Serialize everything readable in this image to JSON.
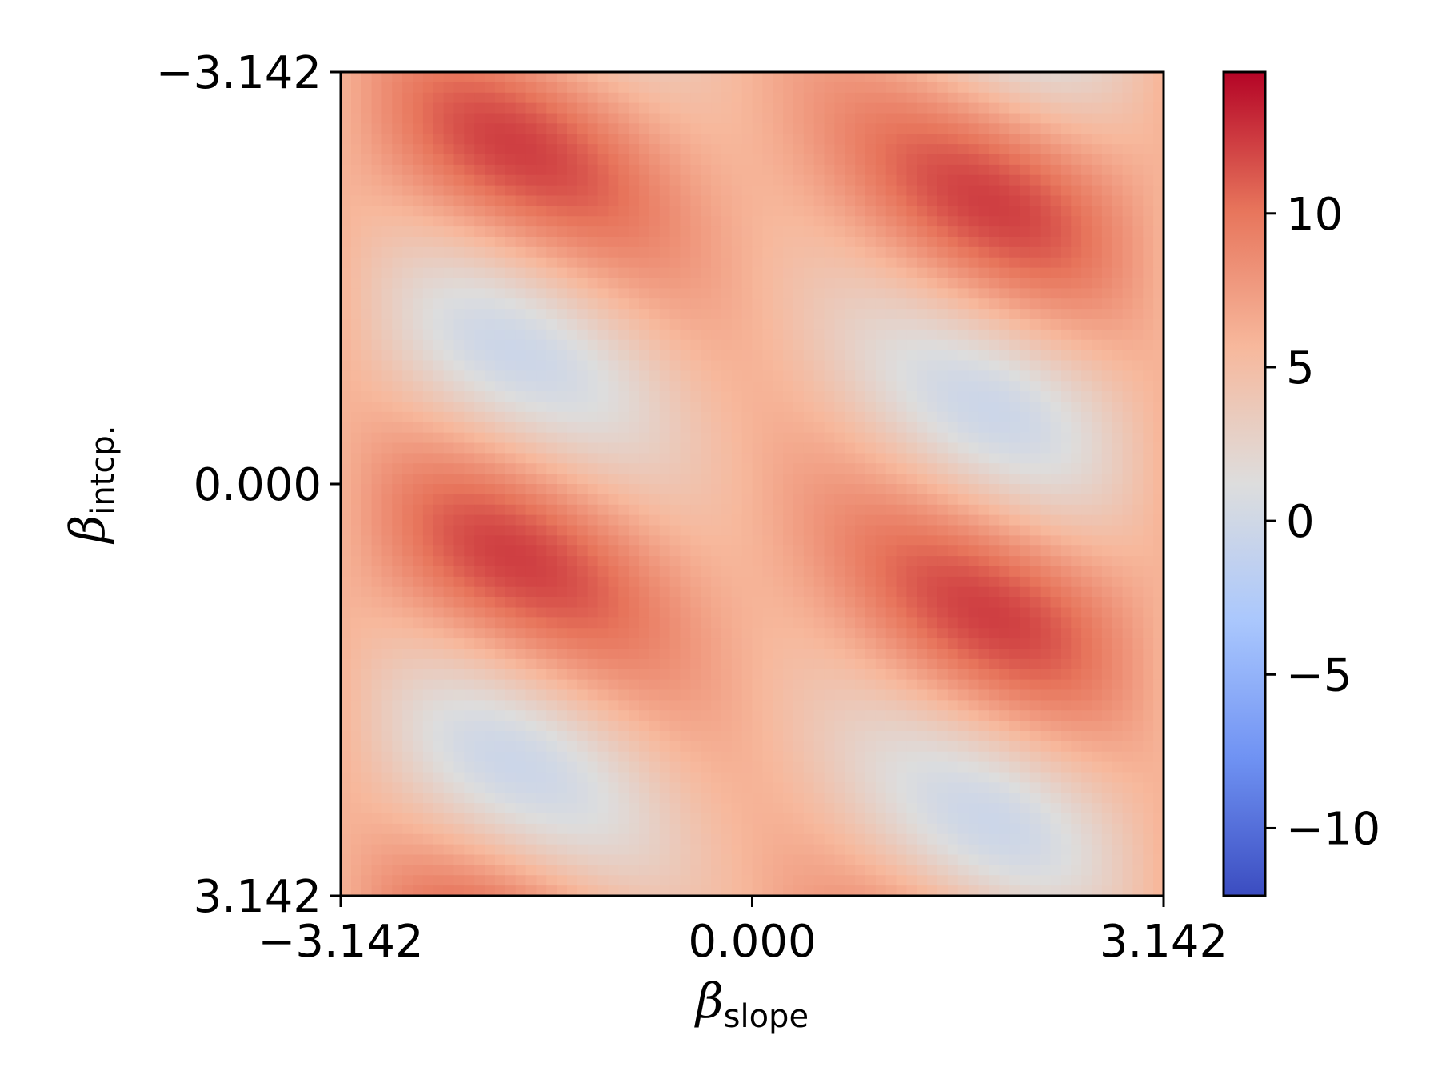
{
  "chart_data": {
    "type": "heatmap",
    "title": "",
    "xlabel": {
      "symbol": "β",
      "subscript": "slope"
    },
    "ylabel": {
      "symbol": "β",
      "subscript": "intcp."
    },
    "xlim": [
      -3.142,
      3.142
    ],
    "ylim": [
      -3.142,
      3.142
    ],
    "y_inverted": true,
    "x_ticks": [
      {
        "value": -3.142,
        "label": "−3.142"
      },
      {
        "value": 0.0,
        "label": "0.000"
      },
      {
        "value": 3.142,
        "label": "3.142"
      }
    ],
    "y_ticks": [
      {
        "value": -3.142,
        "label": "−3.142"
      },
      {
        "value": 0.0,
        "label": "0.000"
      },
      {
        "value": 3.142,
        "label": "3.142"
      }
    ],
    "grid_resolution": [
      80,
      80
    ],
    "colormap": "coolwarm",
    "colormap_stops": [
      "#3b4cc0",
      "#6f92f3",
      "#aac7fd",
      "#dddddd",
      "#f7b89c",
      "#e7745b",
      "#b40426"
    ],
    "colorbar": {
      "range": [
        -12.2,
        14.6
      ],
      "ticks": [
        {
          "value": 10,
          "label": "10"
        },
        {
          "value": 5,
          "label": "5"
        },
        {
          "value": 0,
          "label": "0"
        },
        {
          "value": -5,
          "label": "−5"
        },
        {
          "value": -10,
          "label": "−10"
        }
      ]
    },
    "grid": false
  }
}
